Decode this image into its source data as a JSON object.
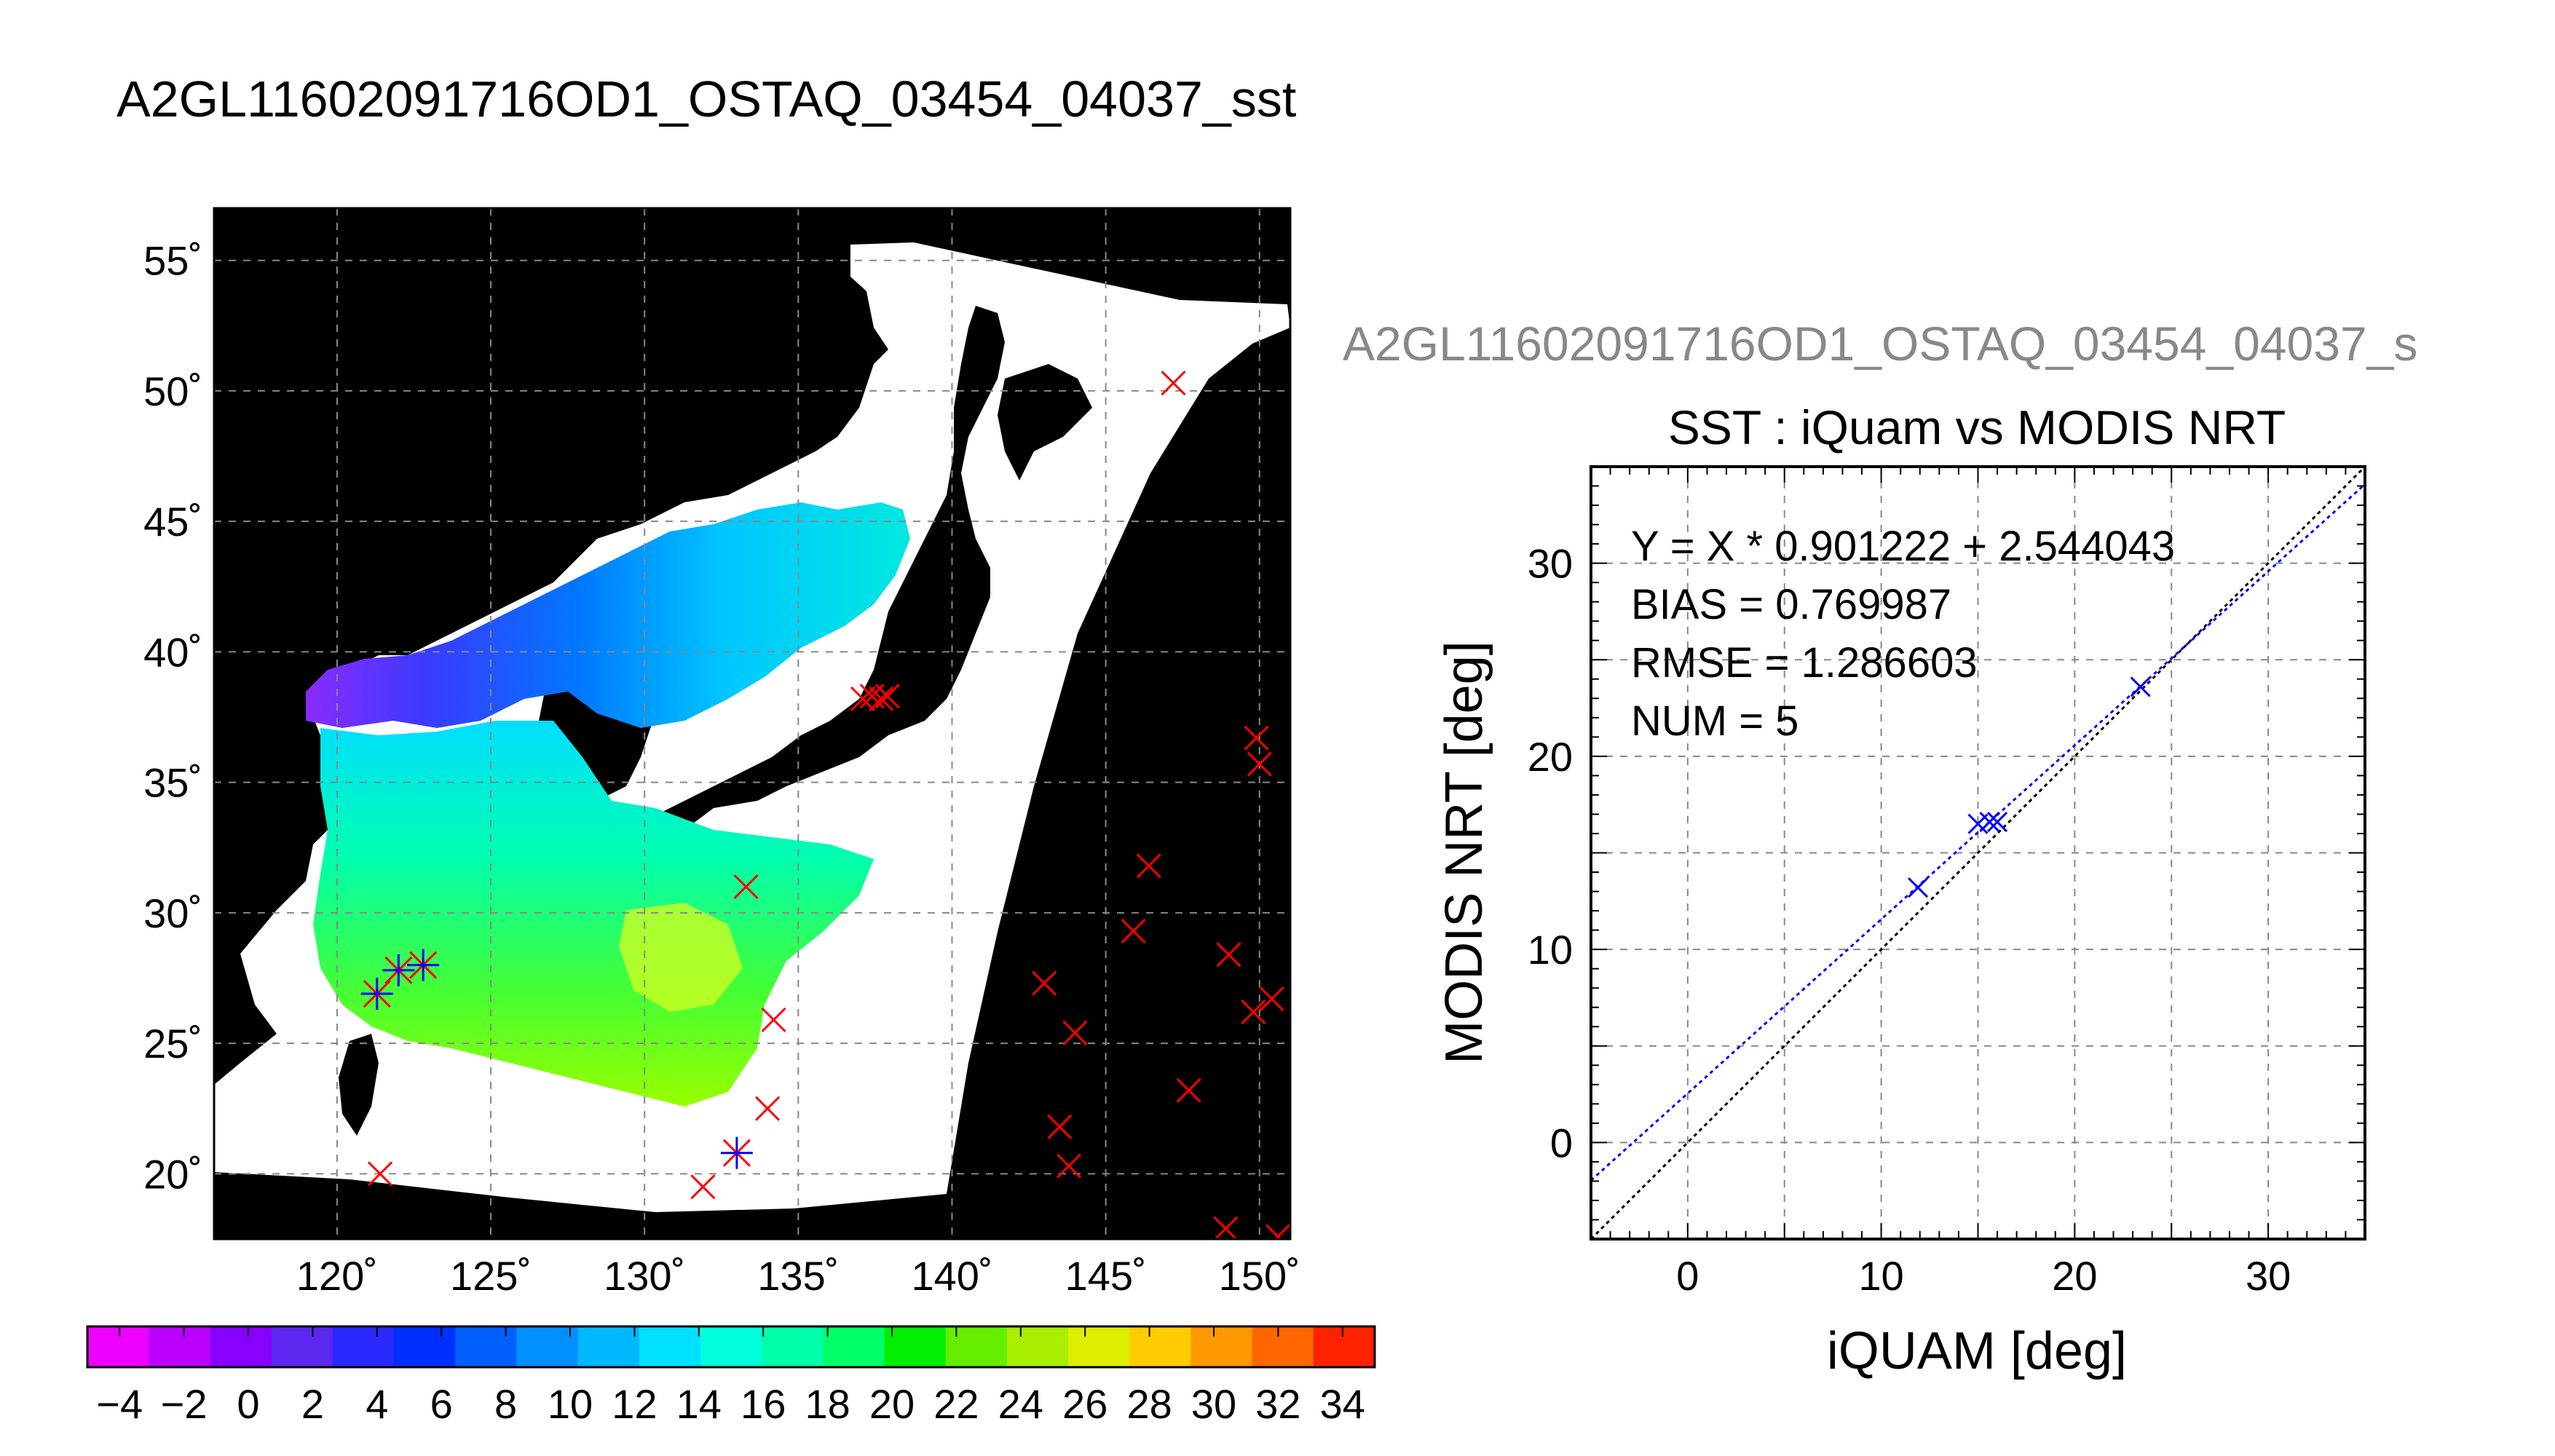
{
  "figure": {
    "main_title": "A2GL11602091716OD1_OSTAQ_03454_04037_sst",
    "secondary_title": "A2GL11602091716OD1_OSTAQ_03454_04037_s"
  },
  "chart_data": [
    {
      "type": "heatmap",
      "description": "SST map with iQuam match-up markers",
      "x_ticks": [
        "120˚",
        "125˚",
        "130˚",
        "135˚",
        "140˚",
        "145˚",
        "150˚"
      ],
      "y_ticks": [
        "20˚",
        "25˚",
        "30˚",
        "35˚",
        "40˚",
        "45˚",
        "50˚",
        "55˚"
      ],
      "x_values": [
        120,
        125,
        130,
        135,
        140,
        145,
        150
      ],
      "y_values": [
        20,
        25,
        30,
        35,
        40,
        45,
        50,
        55
      ],
      "xlim": [
        116,
        151
      ],
      "ylim": [
        17.5,
        57
      ],
      "grid": true,
      "colors": {
        "land": "#000000",
        "no_data": "#ffffff",
        "marker_red": "#ff0000",
        "marker_blue": "#0000ff"
      },
      "markers_red": [
        {
          "lon": 147.2,
          "lat": 50.3
        },
        {
          "lon": 137.1,
          "lat": 38.2
        },
        {
          "lon": 137.4,
          "lat": 38.3
        },
        {
          "lon": 137.7,
          "lat": 38.2
        },
        {
          "lon": 137.9,
          "lat": 38.3
        },
        {
          "lon": 149.9,
          "lat": 36.7
        },
        {
          "lon": 150.0,
          "lat": 35.7
        },
        {
          "lon": 146.4,
          "lat": 31.8
        },
        {
          "lon": 133.3,
          "lat": 31.0
        },
        {
          "lon": 145.9,
          "lat": 29.3
        },
        {
          "lon": 149.0,
          "lat": 28.4
        },
        {
          "lon": 143.0,
          "lat": 27.3
        },
        {
          "lon": 150.4,
          "lat": 26.7
        },
        {
          "lon": 149.8,
          "lat": 26.2
        },
        {
          "lon": 144.0,
          "lat": 25.4
        },
        {
          "lon": 134.2,
          "lat": 25.9
        },
        {
          "lon": 147.7,
          "lat": 23.2
        },
        {
          "lon": 134.0,
          "lat": 22.5
        },
        {
          "lon": 143.5,
          "lat": 21.8
        },
        {
          "lon": 143.8,
          "lat": 20.3
        },
        {
          "lon": 121.4,
          "lat": 20.0
        },
        {
          "lon": 131.9,
          "lat": 19.5
        },
        {
          "lon": 148.9,
          "lat": 17.9
        },
        {
          "lon": 150.6,
          "lat": 17.6
        }
      ],
      "markers_star": [
        {
          "lon": 121.3,
          "lat": 26.9
        },
        {
          "lon": 122.0,
          "lat": 27.8
        },
        {
          "lon": 122.8,
          "lat": 28.0
        },
        {
          "lon": 133.0,
          "lat": 20.8
        }
      ]
    },
    {
      "type": "bar",
      "description": "Colorbar (deg C)",
      "tick_labels": [
        "−4",
        "−2",
        "0",
        "2",
        "4",
        "6",
        "8",
        "10",
        "12",
        "14",
        "16",
        "18",
        "20",
        "22",
        "24",
        "26",
        "28",
        "30",
        "32",
        "34"
      ],
      "range": [
        -5,
        35
      ],
      "colors": [
        "#ee00ff",
        "#bb00ff",
        "#8800ff",
        "#5a28ee",
        "#2a2aff",
        "#0030ff",
        "#0060ff",
        "#0090ff",
        "#00b8ff",
        "#00e0ff",
        "#00ffdd",
        "#00ffaa",
        "#00ff66",
        "#00ee00",
        "#66ee00",
        "#aaee00",
        "#ddee00",
        "#ffcc00",
        "#ff9900",
        "#ff6600",
        "#ff2200"
      ]
    },
    {
      "type": "scatter",
      "title": "SST : iQuam vs MODIS NRT",
      "xlabel": "iQUAM [deg]",
      "ylabel": "MODIS NRT [deg]",
      "xlim": [
        -5,
        35
      ],
      "ylim": [
        -5,
        35
      ],
      "x_ticks": [
        "0",
        "10",
        "20",
        "30"
      ],
      "y_ticks": [
        "0",
        "10",
        "20",
        "30"
      ],
      "tick_values": [
        0,
        10,
        20,
        30
      ],
      "grid": true,
      "stats": [
        "Y = X * 0.901222 + 2.544043",
        "BIAS = 0.769987",
        "RMSE = 1.286603",
        "NUM = 5"
      ],
      "fit": {
        "slope": 0.901222,
        "intercept": 2.544043,
        "color": "#0000ff"
      },
      "identity_color": "#000000",
      "points": [
        {
          "x": 11.9,
          "y": 13.2
        },
        {
          "x": 15.0,
          "y": 16.5
        },
        {
          "x": 15.6,
          "y": 16.6
        },
        {
          "x": 16.0,
          "y": 16.6
        },
        {
          "x": 23.4,
          "y": 23.6
        }
      ],
      "marker_color": "#0000ff"
    }
  ]
}
